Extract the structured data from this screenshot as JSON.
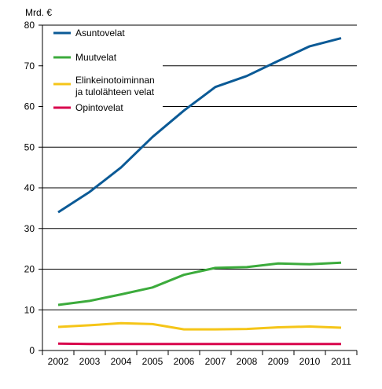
{
  "chart_data": {
    "type": "line",
    "unit_label": "Mrd. €",
    "x": [
      "2002",
      "2003",
      "2004",
      "2005",
      "2006",
      "2007",
      "2008",
      "2009",
      "2010",
      "2011"
    ],
    "ylim": [
      0,
      80
    ],
    "yticks": [
      0,
      10,
      20,
      30,
      40,
      50,
      60,
      70,
      80
    ],
    "grid": "horizontal",
    "legend_position": "top-left",
    "series": [
      {
        "name": "Asuntovelat",
        "legend_lines": [
          "Asuntovelat"
        ],
        "color": "#0b5a96",
        "values": [
          34.0,
          39.0,
          45.0,
          52.5,
          59.0,
          64.8,
          67.5,
          71.2,
          74.8,
          76.8
        ]
      },
      {
        "name": "Muutvelat",
        "legend_lines": [
          "Muutvelat"
        ],
        "color": "#3cab3c",
        "values": [
          11.2,
          12.2,
          13.8,
          15.5,
          18.6,
          20.3,
          20.5,
          21.4,
          21.2,
          21.6
        ]
      },
      {
        "name": "Elinkeinotoiminnan ja tulolähteen velat",
        "legend_lines": [
          "Elinkeinotoiminnan",
          "ja tulolähteen velat"
        ],
        "color": "#f5c518",
        "values": [
          5.8,
          6.2,
          6.7,
          6.5,
          5.2,
          5.2,
          5.3,
          5.7,
          5.9,
          5.6
        ]
      },
      {
        "name": "Opintovelat",
        "legend_lines": [
          "Opintovelat"
        ],
        "color": "#d8004c",
        "values": [
          1.7,
          1.6,
          1.6,
          1.6,
          1.6,
          1.6,
          1.6,
          1.6,
          1.6,
          1.6
        ]
      }
    ]
  }
}
